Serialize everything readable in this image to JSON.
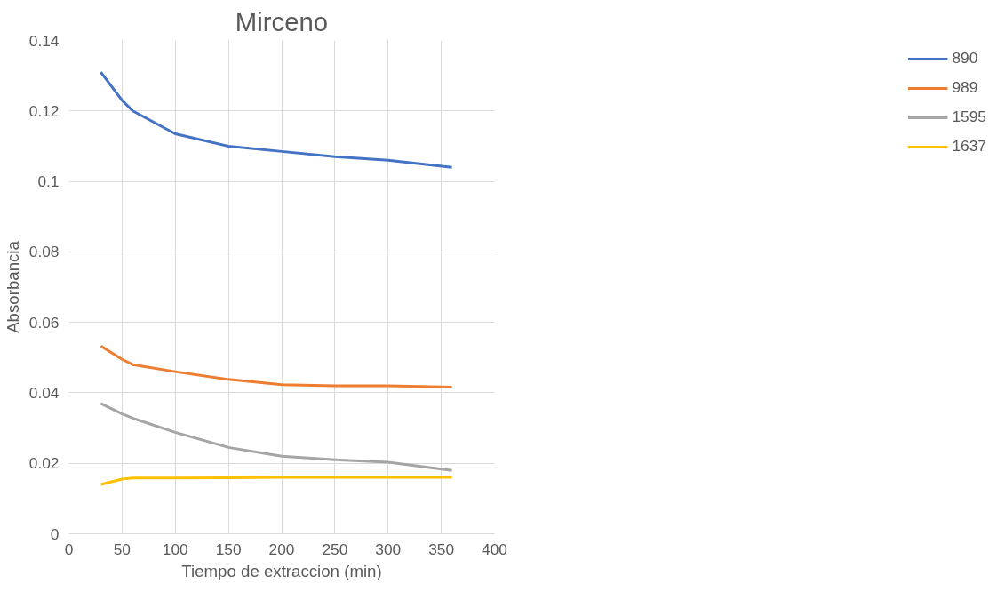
{
  "chart_data": {
    "type": "line",
    "title": "Mirceno",
    "xlabel": "Tiempo de extraccion (min)",
    "ylabel": "Absorbancia",
    "x": [
      30,
      50,
      60,
      100,
      150,
      200,
      250,
      300,
      360
    ],
    "series": [
      {
        "name": "890",
        "color": "#4472c4",
        "values": [
          0.131,
          0.123,
          0.12,
          0.1135,
          0.11,
          0.1085,
          0.107,
          0.106,
          0.104
        ]
      },
      {
        "name": "989",
        "color": "#ed7d31",
        "values": [
          0.0533,
          0.0495,
          0.048,
          0.046,
          0.0438,
          0.0423,
          0.042,
          0.042,
          0.0416
        ]
      },
      {
        "name": "1595",
        "color": "#a5a5a5",
        "values": [
          0.037,
          0.034,
          0.0328,
          0.0288,
          0.0245,
          0.022,
          0.021,
          0.0203,
          0.018
        ]
      },
      {
        "name": "1637",
        "color": "#ffc000",
        "values": [
          0.014,
          0.0155,
          0.0158,
          0.0158,
          0.0159,
          0.016,
          0.016,
          0.016,
          0.016
        ]
      }
    ],
    "xlim": [
      0,
      400
    ],
    "xticks": [
      0,
      50,
      100,
      150,
      200,
      250,
      300,
      350,
      400
    ],
    "ylim": [
      0,
      0.14
    ],
    "yticks": [
      0,
      0.02,
      0.04,
      0.06,
      0.08,
      0.1,
      0.12,
      0.14
    ],
    "grid": true,
    "legend": "right",
    "marker": "none",
    "line_style": "solid"
  }
}
